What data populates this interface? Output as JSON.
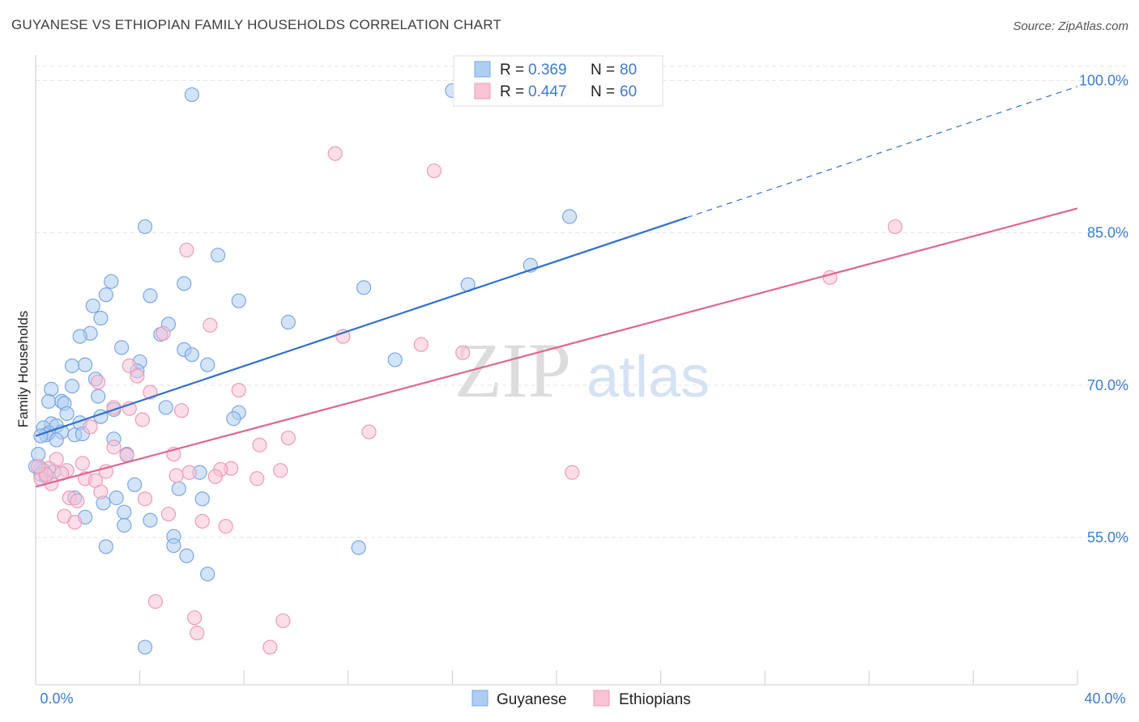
{
  "chart_data": {
    "type": "scatter",
    "title": "GUYANESE VS ETHIOPIAN FAMILY HOUSEHOLDS CORRELATION CHART",
    "source": "Source: ZipAtlas.com",
    "watermark": {
      "zip": "ZIP",
      "atlas": "atlas"
    },
    "xlabel": "",
    "ylabel": "Family Households",
    "xlim": [
      0,
      40
    ],
    "ylim": [
      40.5,
      102.5
    ],
    "x_tick_labels": {
      "min": "0.0%",
      "max": "40.0%"
    },
    "y_ticks": [
      {
        "value": 55,
        "label": "55.0%"
      },
      {
        "value": 70,
        "label": "70.0%"
      },
      {
        "value": 85,
        "label": "85.0%"
      },
      {
        "value": 100,
        "label": "100.0%"
      }
    ],
    "legend": {
      "entries": [
        {
          "r_label": "R =",
          "r": "0.369",
          "n_label": "N =",
          "n": "80"
        },
        {
          "r_label": "R =",
          "r": "0.447",
          "n_label": "N =",
          "n": "60"
        }
      ]
    },
    "series": [
      {
        "name": "Guyanese",
        "color": "#7aa7e6",
        "fill": "#aecdf3",
        "line_color": "#2f6fd1",
        "trend": {
          "x0": 0.0,
          "y0": 65.0,
          "x1": 25.0,
          "y1": 86.5,
          "dash_to_x": 40.0,
          "dash_to_y": 99.4
        },
        "points": [
          [
            6.0,
            98.6
          ],
          [
            4.2,
            85.6
          ],
          [
            20.5,
            86.6
          ],
          [
            19.0,
            81.8
          ],
          [
            7.0,
            82.8
          ],
          [
            2.9,
            80.2
          ],
          [
            5.7,
            80.0
          ],
          [
            12.6,
            79.6
          ],
          [
            16.6,
            79.9
          ],
          [
            2.7,
            78.9
          ],
          [
            4.4,
            78.8
          ],
          [
            7.8,
            78.3
          ],
          [
            2.2,
            77.8
          ],
          [
            2.5,
            76.6
          ],
          [
            9.7,
            76.2
          ],
          [
            5.1,
            76.0
          ],
          [
            2.1,
            75.1
          ],
          [
            1.7,
            74.8
          ],
          [
            4.8,
            75.0
          ],
          [
            3.3,
            73.7
          ],
          [
            5.7,
            73.5
          ],
          [
            6.0,
            73.0
          ],
          [
            13.8,
            72.5
          ],
          [
            4.0,
            72.3
          ],
          [
            1.4,
            71.9
          ],
          [
            1.9,
            72.0
          ],
          [
            6.6,
            72.0
          ],
          [
            3.9,
            71.4
          ],
          [
            2.3,
            70.6
          ],
          [
            1.4,
            69.9
          ],
          [
            0.6,
            69.6
          ],
          [
            2.4,
            68.9
          ],
          [
            0.5,
            68.4
          ],
          [
            1.0,
            68.4
          ],
          [
            1.1,
            68.2
          ],
          [
            5.0,
            67.8
          ],
          [
            3.0,
            67.6
          ],
          [
            7.8,
            67.3
          ],
          [
            1.2,
            67.2
          ],
          [
            2.5,
            66.9
          ],
          [
            7.6,
            66.7
          ],
          [
            1.7,
            66.3
          ],
          [
            0.6,
            66.2
          ],
          [
            0.8,
            66.0
          ],
          [
            0.3,
            65.8
          ],
          [
            1.0,
            65.4
          ],
          [
            0.5,
            65.3
          ],
          [
            0.4,
            65.1
          ],
          [
            1.5,
            65.1
          ],
          [
            1.8,
            65.2
          ],
          [
            0.2,
            65.0
          ],
          [
            0.8,
            64.6
          ],
          [
            3.0,
            64.7
          ],
          [
            3.5,
            63.2
          ],
          [
            0.2,
            61.8
          ],
          [
            0.3,
            61.6
          ],
          [
            6.3,
            61.4
          ],
          [
            0.2,
            61.2
          ],
          [
            3.8,
            60.2
          ],
          [
            5.5,
            59.8
          ],
          [
            1.5,
            58.9
          ],
          [
            3.1,
            58.9
          ],
          [
            6.4,
            58.8
          ],
          [
            2.6,
            58.4
          ],
          [
            3.4,
            57.5
          ],
          [
            1.9,
            57.0
          ],
          [
            4.4,
            56.7
          ],
          [
            3.4,
            56.2
          ],
          [
            5.3,
            55.1
          ],
          [
            2.7,
            54.1
          ],
          [
            5.3,
            54.2
          ],
          [
            12.4,
            54.0
          ],
          [
            5.8,
            53.2
          ],
          [
            6.6,
            51.4
          ],
          [
            4.2,
            44.2
          ],
          [
            0.0,
            62.0
          ],
          [
            0.1,
            63.2
          ],
          [
            16.0,
            99.0
          ],
          [
            0.4,
            61.0
          ],
          [
            0.7,
            61.5
          ]
        ]
      },
      {
        "name": "Ethiopians",
        "color": "#ee9bb8",
        "fill": "#f7c3d5",
        "line_color": "#e0668f",
        "trend": {
          "x0": 0.0,
          "y0": 60.0,
          "x1": 40.0,
          "y1": 87.4
        },
        "points": [
          [
            11.5,
            92.8
          ],
          [
            15.3,
            91.1
          ],
          [
            33.0,
            85.6
          ],
          [
            30.5,
            80.6
          ],
          [
            5.8,
            83.3
          ],
          [
            6.7,
            75.9
          ],
          [
            11.8,
            74.8
          ],
          [
            14.8,
            74.0
          ],
          [
            16.4,
            73.2
          ],
          [
            4.9,
            75.1
          ],
          [
            3.6,
            71.9
          ],
          [
            3.9,
            70.9
          ],
          [
            2.4,
            70.3
          ],
          [
            7.8,
            69.5
          ],
          [
            4.4,
            69.3
          ],
          [
            3.0,
            67.8
          ],
          [
            3.6,
            67.7
          ],
          [
            5.6,
            67.5
          ],
          [
            4.1,
            66.6
          ],
          [
            2.1,
            65.9
          ],
          [
            12.8,
            65.4
          ],
          [
            9.7,
            64.8
          ],
          [
            8.6,
            64.1
          ],
          [
            3.0,
            63.9
          ],
          [
            3.5,
            63.1
          ],
          [
            5.3,
            63.2
          ],
          [
            0.8,
            62.7
          ],
          [
            1.8,
            62.3
          ],
          [
            0.5,
            61.8
          ],
          [
            20.6,
            61.4
          ],
          [
            9.4,
            61.6
          ],
          [
            7.5,
            61.8
          ],
          [
            7.1,
            61.7
          ],
          [
            2.7,
            61.5
          ],
          [
            5.9,
            61.4
          ],
          [
            1.2,
            61.6
          ],
          [
            5.4,
            61.1
          ],
          [
            6.9,
            61.0
          ],
          [
            8.5,
            60.8
          ],
          [
            1.9,
            60.8
          ],
          [
            2.3,
            60.6
          ],
          [
            0.6,
            60.3
          ],
          [
            1.3,
            58.9
          ],
          [
            4.2,
            58.8
          ],
          [
            1.6,
            58.6
          ],
          [
            5.1,
            57.3
          ],
          [
            1.1,
            57.1
          ],
          [
            6.4,
            56.6
          ],
          [
            1.5,
            56.5
          ],
          [
            7.3,
            56.1
          ],
          [
            4.6,
            48.7
          ],
          [
            6.1,
            47.1
          ],
          [
            9.5,
            46.8
          ],
          [
            6.2,
            45.6
          ],
          [
            9.0,
            44.2
          ],
          [
            2.5,
            59.5
          ],
          [
            1.0,
            61.3
          ],
          [
            0.2,
            60.8
          ],
          [
            0.4,
            61.2
          ],
          [
            0.1,
            62.0
          ]
        ]
      }
    ]
  }
}
